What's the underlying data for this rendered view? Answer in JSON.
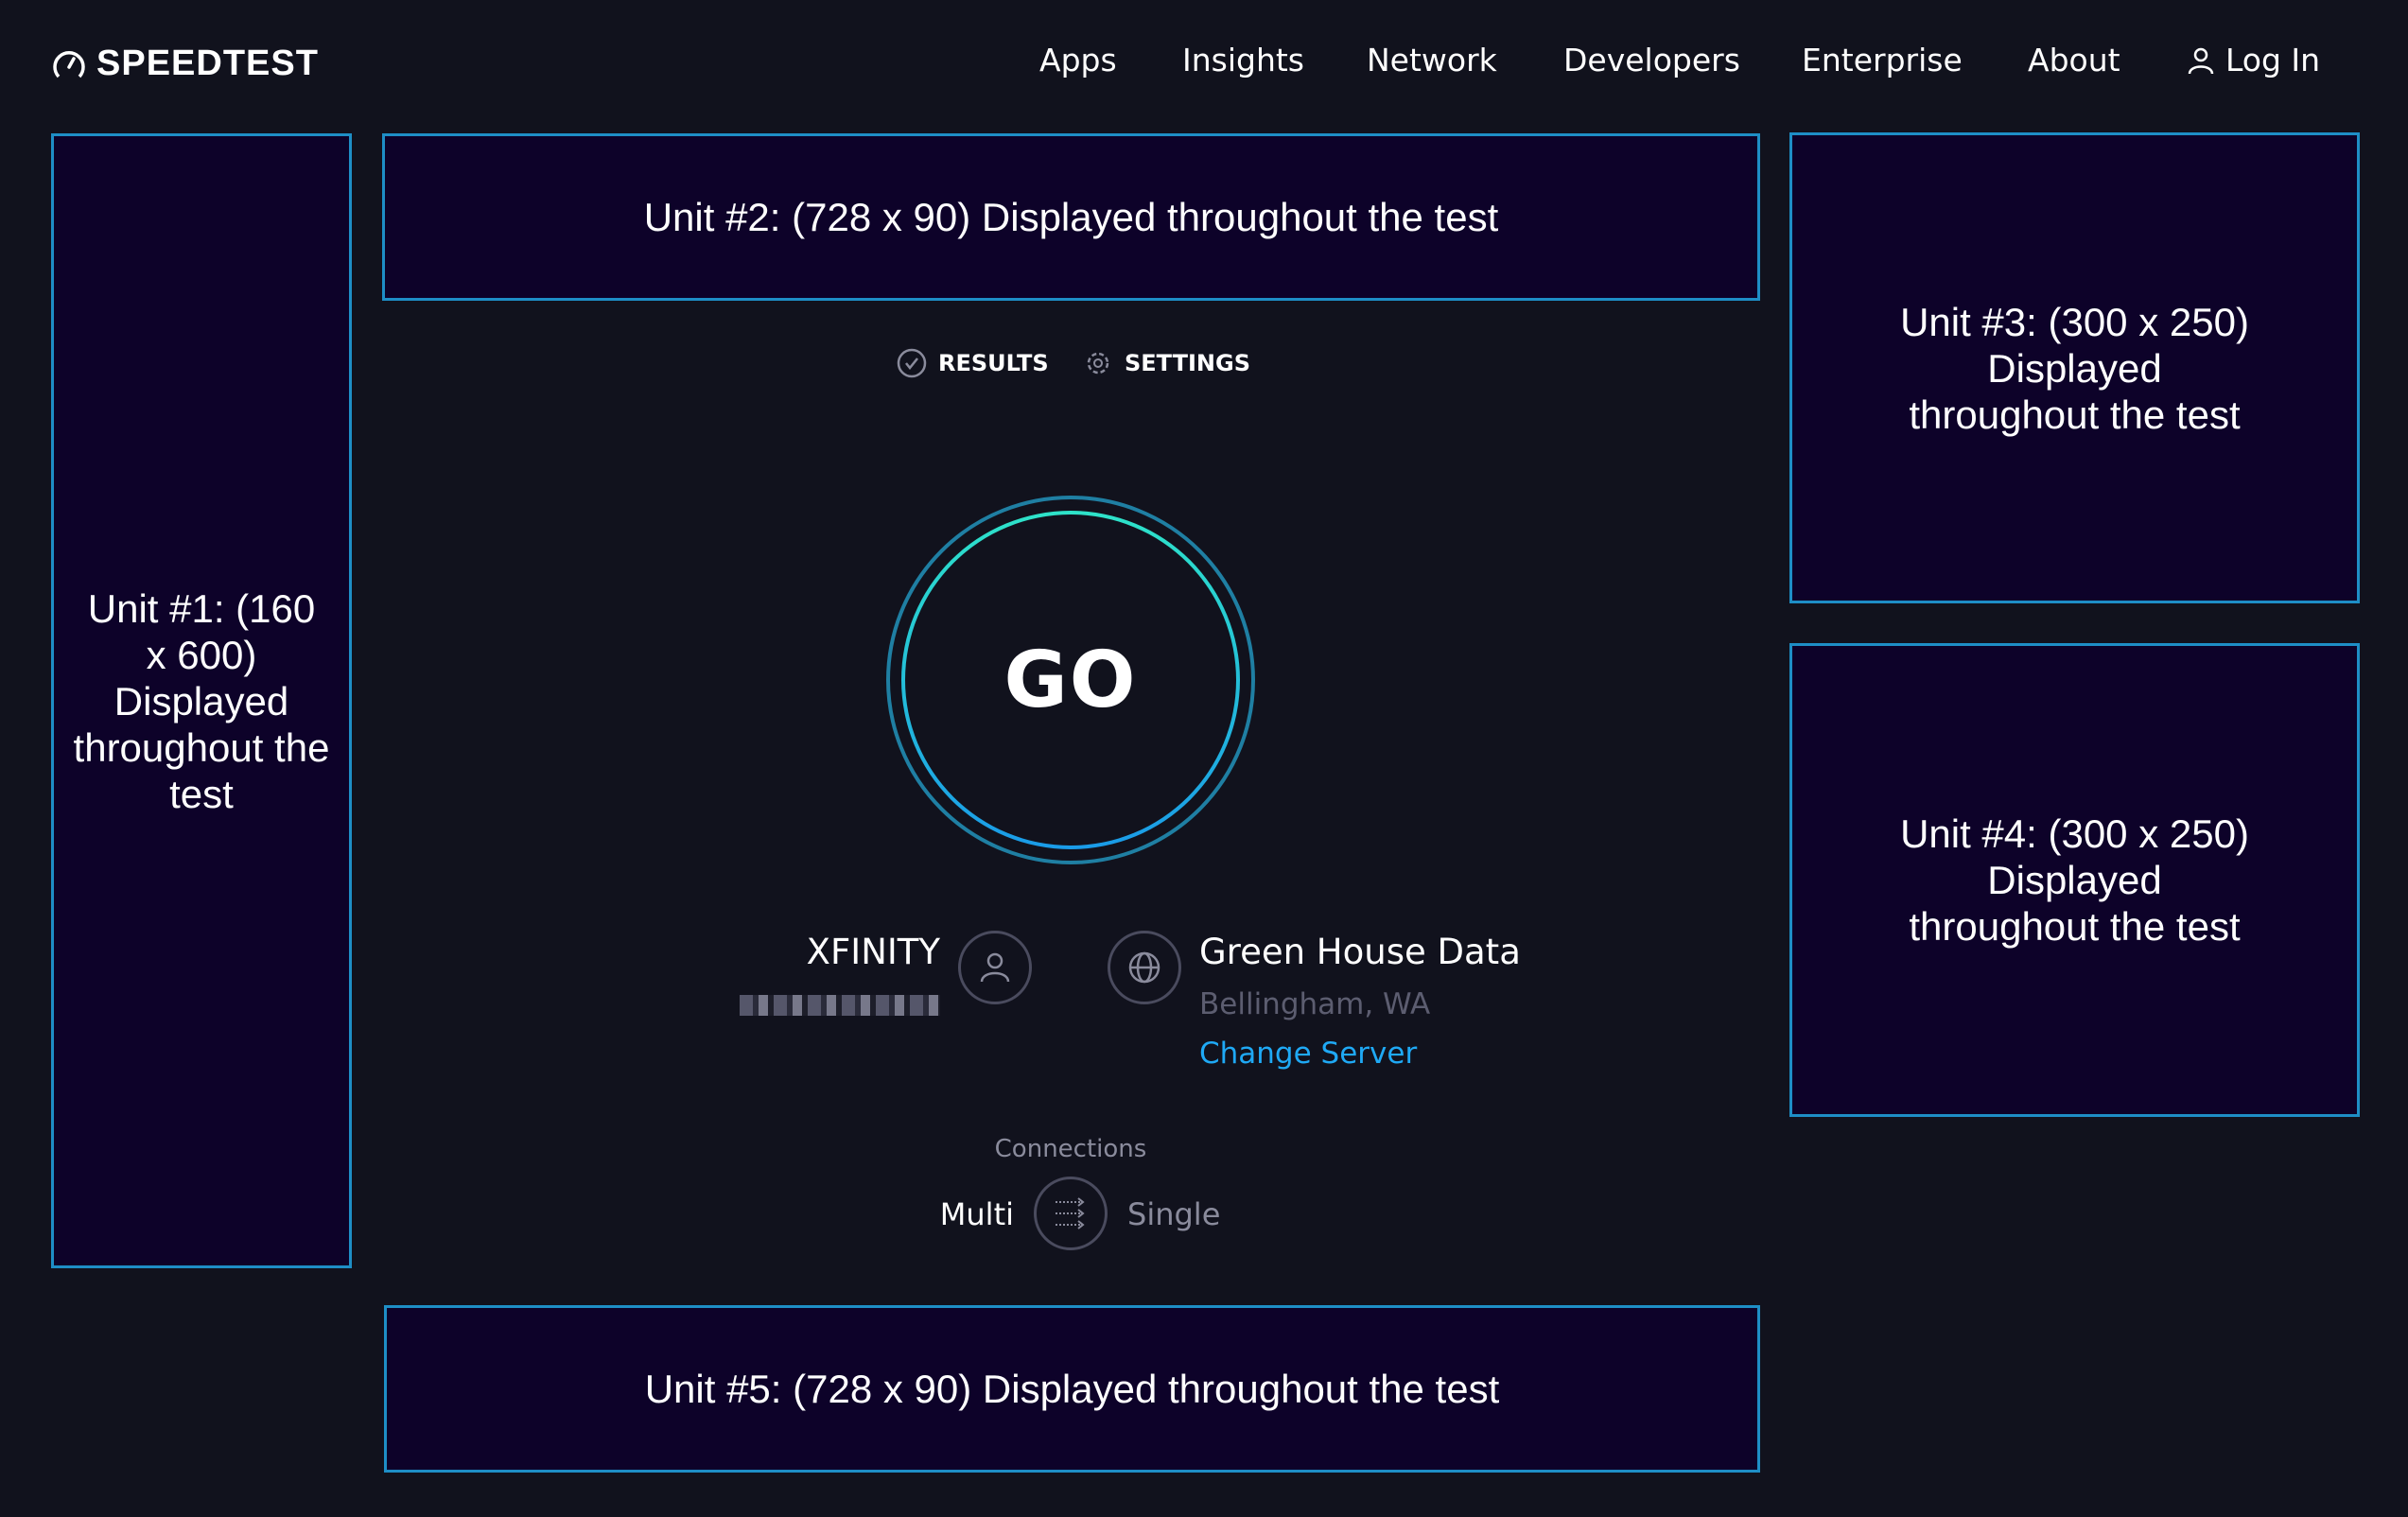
{
  "header": {
    "logo": "SPEEDTEST",
    "nav": [
      "Apps",
      "Insights",
      "Network",
      "Developers",
      "Enterprise",
      "About"
    ],
    "login": "Log In"
  },
  "ads": {
    "unit1": "Unit #1: (160 x 600) Displayed throughout the test",
    "unit2": "Unit #2: (728 x 90) Displayed throughout the test",
    "unit3": "Unit #3: (300 x 250) Displayed throughout the test",
    "unit4": "Unit #4: (300 x 250) Displayed throughout the test",
    "unit5": "Unit #5: (728 x 90) Displayed throughout the test"
  },
  "tabs": {
    "results": "RESULTS",
    "settings": "SETTINGS"
  },
  "go": "GO",
  "isp": {
    "name": "XFINITY"
  },
  "server": {
    "name": "Green House Data",
    "location": "Bellingham, WA",
    "change": "Change Server"
  },
  "connections": {
    "label": "Connections",
    "multi": "Multi",
    "single": "Single"
  },
  "colors": {
    "background": "#11121d",
    "ad_bg": "#0d0229",
    "ad_border": "#1e8ec6",
    "link": "#1fa9f5",
    "ring_start": "#2ee3c9",
    "ring_end": "#1a9be8"
  }
}
